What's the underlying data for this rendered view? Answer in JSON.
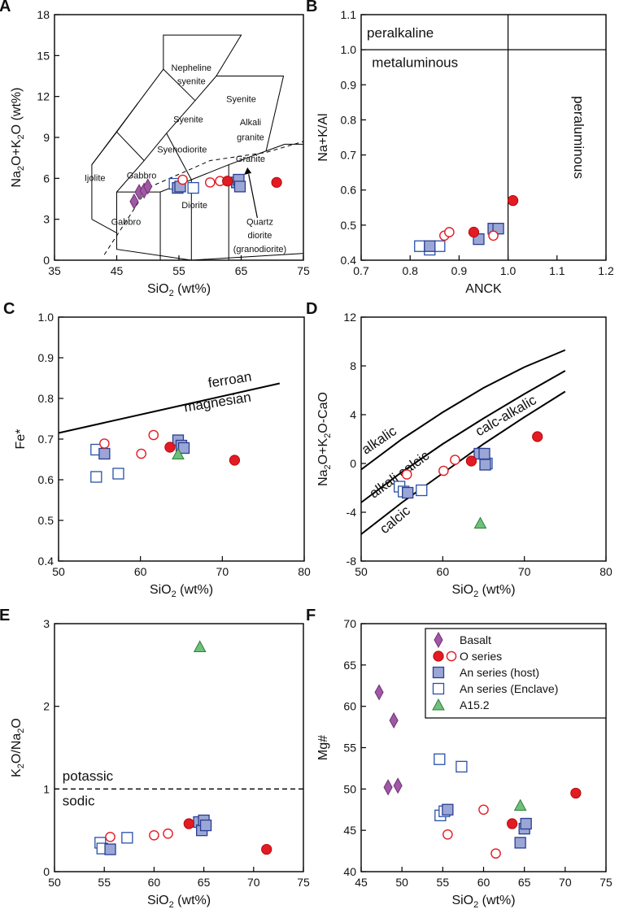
{
  "figure": {
    "colors": {
      "basalt": "#a157a5",
      "basalt_stroke": "#6b3473",
      "o_series": "#e31b23",
      "host_fill": "#9aa7d6",
      "host_stroke": "#2b3d8f",
      "enclave_stroke": "#2850a8",
      "a152_fill": "#6ec07a",
      "a152_stroke": "#2e7d3b"
    },
    "legend": {
      "basalt": "Basalt",
      "o_series": "O series",
      "host": "An series (host)",
      "enclave": "An series (Enclave)",
      "a152": "A15.2"
    }
  },
  "chart_data": [
    {
      "panel": "A",
      "type": "scatter",
      "subtype": "TAS classification",
      "xlim": [
        35,
        75
      ],
      "ylim": [
        0,
        18
      ],
      "xticks": [
        "35",
        "45",
        "55",
        "65",
        "75"
      ],
      "yticks": [
        "0",
        "3",
        "6",
        "9",
        "12",
        "15",
        "18"
      ],
      "ylabel_parts": [
        "Na",
        "2",
        "O+K",
        "2",
        "O (wt%)"
      ],
      "xlabel_parts": [
        "SiO",
        "2",
        " (wt%)"
      ],
      "fields": [
        "Nepheline",
        "syenite",
        "Syenite",
        "Syenite",
        "Alkali",
        "granite",
        "Syenodiorite",
        "Granite",
        "Ijolite",
        "Gabbro",
        "Diorite",
        "Gabbro",
        "Quartz",
        "diorite",
        "(granodiorite)"
      ],
      "series": {
        "basalt": [
          [
            47.8,
            4.3
          ],
          [
            48.6,
            5.0
          ],
          [
            49.4,
            5.1
          ],
          [
            50.0,
            5.4
          ]
        ],
        "o_filled": [
          [
            62.8,
            5.8
          ],
          [
            70.7,
            5.7
          ]
        ],
        "o_open": [
          [
            55.6,
            5.9
          ],
          [
            60.0,
            5.7
          ],
          [
            61.6,
            5.8
          ]
        ],
        "host": [
          [
            54.8,
            5.3
          ],
          [
            55.2,
            5.4
          ],
          [
            64.3,
            5.7
          ],
          [
            64.6,
            5.9
          ],
          [
            64.8,
            5.4
          ]
        ],
        "enclave": [
          [
            54.3,
            5.6
          ],
          [
            57.3,
            5.3
          ]
        ]
      }
    },
    {
      "panel": "B",
      "type": "scatter",
      "subtype": "Shand index",
      "xlim": [
        0.7,
        1.2
      ],
      "ylim": [
        0.4,
        1.1
      ],
      "xticks": [
        "0.7",
        "0.8",
        "0.9",
        "1.0",
        "1.1",
        "1.2"
      ],
      "yticks": [
        "0.4",
        "0.5",
        "0.6",
        "0.7",
        "0.8",
        "0.9",
        "1.0",
        "1.1"
      ],
      "ylabel": "Na+K/Al",
      "xlabel": "ANCK",
      "fields": [
        "peralkaline",
        "metaluminous",
        "peraluminous"
      ],
      "series": {
        "o_filled": [
          [
            0.93,
            0.48
          ],
          [
            1.01,
            0.57
          ]
        ],
        "o_open": [
          [
            0.87,
            0.47
          ],
          [
            0.88,
            0.48
          ],
          [
            0.97,
            0.47
          ]
        ],
        "host": [
          [
            0.84,
            0.44
          ],
          [
            0.94,
            0.46
          ],
          [
            0.97,
            0.49
          ],
          [
            0.98,
            0.49
          ]
        ],
        "enclave": [
          [
            0.82,
            0.44
          ],
          [
            0.84,
            0.43
          ],
          [
            0.86,
            0.44
          ]
        ]
      }
    },
    {
      "panel": "C",
      "type": "scatter",
      "xlim": [
        50,
        80
      ],
      "ylim": [
        0.4,
        1.0
      ],
      "xticks": [
        "50",
        "60",
        "70",
        "80"
      ],
      "yticks": [
        "0.4",
        "0.5",
        "0.6",
        "0.7",
        "0.8",
        "0.9",
        "1.0"
      ],
      "ylabel": "Fe*",
      "xlabel_parts": [
        "SiO",
        "2",
        " (wt%)"
      ],
      "fields": [
        "ferroan",
        "magnesian"
      ],
      "boundary": [
        [
          50,
          0.715
        ],
        [
          77,
          0.837
        ]
      ],
      "series": {
        "o_filled": [
          [
            63.6,
            0.68
          ],
          [
            71.5,
            0.648
          ]
        ],
        "o_open": [
          [
            55.6,
            0.689
          ],
          [
            60.1,
            0.664
          ],
          [
            61.6,
            0.71
          ]
        ],
        "host": [
          [
            55.6,
            0.664
          ],
          [
            64.6,
            0.697
          ],
          [
            65.0,
            0.684
          ],
          [
            65.3,
            0.678
          ]
        ],
        "enclave": [
          [
            54.6,
            0.674
          ],
          [
            54.6,
            0.607
          ],
          [
            57.3,
            0.615
          ]
        ],
        "a152": [
          [
            64.6,
            0.663
          ]
        ]
      }
    },
    {
      "panel": "D",
      "type": "scatter",
      "xlim": [
        50,
        80
      ],
      "ylim": [
        -8,
        12
      ],
      "xticks": [
        "50",
        "60",
        "70",
        "80"
      ],
      "yticks": [
        "-8",
        "-4",
        "0",
        "4",
        "8",
        "12"
      ],
      "ylabel_parts": [
        "Na",
        "2",
        "O+K",
        "2",
        "O-CaO"
      ],
      "xlabel_parts": [
        "SiO",
        "2",
        " (wt%)"
      ],
      "fields": [
        "alkalic",
        "alkali calcic",
        "calc-alkalic",
        "calcic"
      ],
      "boundaries": [
        [
          [
            50,
            -0.5
          ],
          [
            55,
            2.0
          ],
          [
            60,
            4.2
          ],
          [
            65,
            6.2
          ],
          [
            70,
            7.9
          ],
          [
            75,
            9.3
          ]
        ],
        [
          [
            50,
            -3.2
          ],
          [
            55,
            -0.7
          ],
          [
            60,
            1.6
          ],
          [
            65,
            3.7
          ],
          [
            70,
            5.7
          ],
          [
            75,
            7.6
          ]
        ],
        [
          [
            50,
            -5.8
          ],
          [
            55,
            -3.2
          ],
          [
            60,
            -0.8
          ],
          [
            65,
            1.6
          ],
          [
            70,
            3.8
          ],
          [
            75,
            5.9
          ]
        ]
      ],
      "series": {
        "o_filled": [
          [
            63.5,
            0.2
          ],
          [
            71.6,
            2.2
          ]
        ],
        "o_open": [
          [
            55.6,
            -0.9
          ],
          [
            60.1,
            -0.6
          ],
          [
            61.5,
            0.3
          ]
        ],
        "host": [
          [
            55.7,
            -2.4
          ],
          [
            64.5,
            0.8
          ],
          [
            65.1,
            0.8
          ],
          [
            65.2,
            -0.1
          ]
        ],
        "enclave": [
          [
            54.7,
            -1.9
          ],
          [
            55.2,
            -2.3
          ],
          [
            57.4,
            -2.2
          ],
          [
            65.4,
            0.0
          ]
        ],
        "a152": [
          [
            64.6,
            -4.9
          ]
        ]
      }
    },
    {
      "panel": "E",
      "type": "scatter",
      "xlim": [
        50,
        75
      ],
      "ylim": [
        0,
        3
      ],
      "xticks": [
        "50",
        "55",
        "60",
        "65",
        "70",
        "75"
      ],
      "yticks": [
        "0",
        "1",
        "2",
        "3"
      ],
      "ylabel_parts": [
        "K",
        "2",
        "O/Na",
        "2",
        "O"
      ],
      "xlabel_parts": [
        "SiO",
        "2",
        " (wt%)"
      ],
      "fields": [
        "potassic",
        "sodic"
      ],
      "threshold": 1.0,
      "series": {
        "o_filled": [
          [
            63.5,
            0.58
          ],
          [
            71.3,
            0.27
          ]
        ],
        "o_open": [
          [
            55.6,
            0.42
          ],
          [
            60.0,
            0.44
          ],
          [
            61.4,
            0.46
          ]
        ],
        "host": [
          [
            55.6,
            0.27
          ],
          [
            64.5,
            0.6
          ],
          [
            64.8,
            0.5
          ],
          [
            65.0,
            0.62
          ],
          [
            65.2,
            0.56
          ]
        ],
        "enclave": [
          [
            54.6,
            0.35
          ],
          [
            54.8,
            0.28
          ],
          [
            57.3,
            0.41
          ]
        ],
        "a152": [
          [
            64.6,
            2.72
          ]
        ]
      }
    },
    {
      "panel": "F",
      "type": "scatter",
      "xlim": [
        45,
        75
      ],
      "ylim": [
        40,
        70
      ],
      "xticks": [
        "45",
        "50",
        "55",
        "60",
        "65",
        "70",
        "75"
      ],
      "yticks": [
        "40",
        "45",
        "50",
        "55",
        "60",
        "65",
        "70"
      ],
      "ylabel": "Mg#",
      "xlabel_parts": [
        "SiO",
        "2",
        " (wt%)"
      ],
      "series": {
        "basalt": [
          [
            47.2,
            61.7
          ],
          [
            48.3,
            50.2
          ],
          [
            49.0,
            58.3
          ],
          [
            49.5,
            50.4
          ]
        ],
        "o_filled": [
          [
            63.5,
            45.8
          ],
          [
            71.3,
            49.5
          ]
        ],
        "o_open": [
          [
            55.6,
            44.5
          ],
          [
            60.0,
            47.5
          ],
          [
            61.5,
            42.2
          ]
        ],
        "host": [
          [
            55.6,
            47.5
          ],
          [
            64.5,
            43.5
          ],
          [
            65.0,
            45.2
          ],
          [
            65.2,
            45.8
          ]
        ],
        "enclave": [
          [
            54.6,
            53.6
          ],
          [
            54.7,
            46.8
          ],
          [
            55.2,
            47.3
          ],
          [
            57.3,
            52.7
          ]
        ],
        "a152": [
          [
            64.5,
            48.0
          ]
        ]
      }
    }
  ]
}
